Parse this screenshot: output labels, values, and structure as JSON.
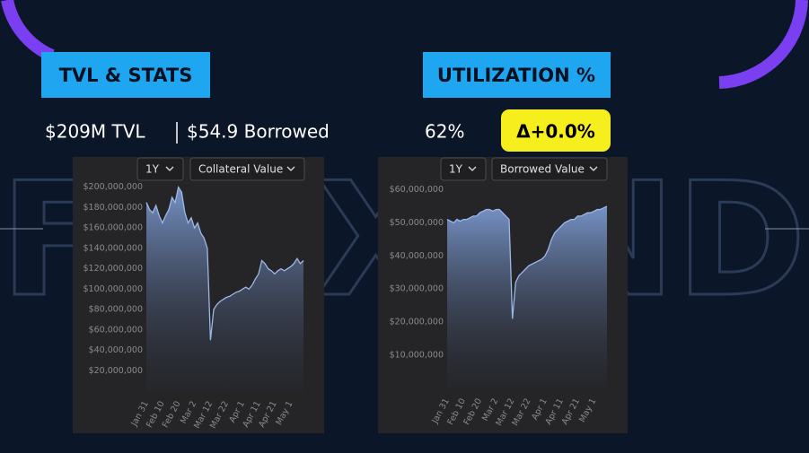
{
  "header": {
    "left_label": "TVL & STATS",
    "right_label": "UTILIZATION %"
  },
  "stats": {
    "tvl": "$209M TVL",
    "borrowed": "$54.9 Borrowed",
    "utilization": "62%",
    "delta": "Δ+0.0%"
  },
  "watermark": "FLEXEND",
  "chart_data": [
    {
      "type": "area",
      "period": "1Y",
      "metric": "Collateral Value",
      "color": "#9db8e8",
      "categories": [
        "Jan 31",
        null,
        null,
        null,
        null,
        "Feb 10",
        null,
        null,
        null,
        null,
        "Feb 20",
        null,
        null,
        null,
        null,
        "Mar 2",
        null,
        null,
        null,
        null,
        "Mar 12",
        null,
        null,
        null,
        null,
        "Mar 22",
        null,
        null,
        null,
        null,
        "Apr 1",
        null,
        null,
        null,
        null,
        "Apr 11",
        null,
        null,
        null,
        null,
        "Apr 21",
        null,
        null,
        null,
        null,
        "May 1",
        null,
        null,
        null,
        null
      ],
      "values": [
        185000000,
        178000000,
        175000000,
        182000000,
        172000000,
        165000000,
        172000000,
        178000000,
        190000000,
        185000000,
        200000000,
        195000000,
        175000000,
        165000000,
        170000000,
        160000000,
        165000000,
        155000000,
        150000000,
        140000000,
        50000000,
        80000000,
        85000000,
        88000000,
        90000000,
        92000000,
        93000000,
        95000000,
        97000000,
        98000000,
        100000000,
        102000000,
        100000000,
        104000000,
        110000000,
        115000000,
        128000000,
        125000000,
        120000000,
        118000000,
        115000000,
        118000000,
        120000000,
        118000000,
        120000000,
        122000000,
        125000000,
        130000000,
        125000000,
        128000000
      ],
      "ylim": [
        0,
        205000000
      ],
      "yticks": [
        {
          "value": 20000000,
          "label": "$20,000,000"
        },
        {
          "value": 40000000,
          "label": "$40,000,000"
        },
        {
          "value": 60000000,
          "label": "$60,000,000"
        },
        {
          "value": 80000000,
          "label": "$80,000,000"
        },
        {
          "value": 100000000,
          "label": "$100,000,000"
        },
        {
          "value": 120000000,
          "label": "$120,000,000"
        },
        {
          "value": 140000000,
          "label": "$140,000,000"
        },
        {
          "value": 160000000,
          "label": "$160,000,000"
        },
        {
          "value": 180000000,
          "label": "$180,000,000"
        },
        {
          "value": 200000000,
          "label": "$200,000,000"
        }
      ]
    },
    {
      "type": "area",
      "period": "1Y",
      "metric": "Borrowed Value",
      "color": "#9db8e8",
      "categories": [
        "Jan 31",
        null,
        null,
        null,
        null,
        "Feb 10",
        null,
        null,
        null,
        null,
        "Feb 20",
        null,
        null,
        null,
        null,
        "Mar 2",
        null,
        null,
        null,
        null,
        "Mar 12",
        null,
        null,
        null,
        null,
        "Mar 22",
        null,
        null,
        null,
        null,
        "Apr 1",
        null,
        null,
        null,
        null,
        "Apr 11",
        null,
        null,
        null,
        null,
        "Apr 21",
        null,
        null,
        null,
        null,
        "May 1",
        null,
        null,
        null,
        null
      ],
      "values": [
        51000000,
        50500000,
        50000000,
        51000000,
        50500000,
        51000000,
        51000000,
        51500000,
        52000000,
        52000000,
        53000000,
        53500000,
        54000000,
        54000000,
        53500000,
        54000000,
        54000000,
        53000000,
        52000000,
        51000000,
        21000000,
        32000000,
        34000000,
        35000000,
        36000000,
        37000000,
        37500000,
        38000000,
        38500000,
        39000000,
        40000000,
        42000000,
        45000000,
        47000000,
        48000000,
        49000000,
        50000000,
        50500000,
        51000000,
        51000000,
        52000000,
        52000000,
        52500000,
        53000000,
        53000000,
        53500000,
        54000000,
        54000000,
        54500000,
        55000000
      ],
      "ylim": [
        0,
        62000000
      ],
      "yticks": [
        {
          "value": 10000000,
          "label": "$10,000,000"
        },
        {
          "value": 20000000,
          "label": "$20,000,000"
        },
        {
          "value": 30000000,
          "label": "$30,000,000"
        },
        {
          "value": 40000000,
          "label": "$40,000,000"
        },
        {
          "value": 50000000,
          "label": "$50,000,000"
        },
        {
          "value": 60000000,
          "label": "$60,000,000"
        }
      ]
    }
  ]
}
